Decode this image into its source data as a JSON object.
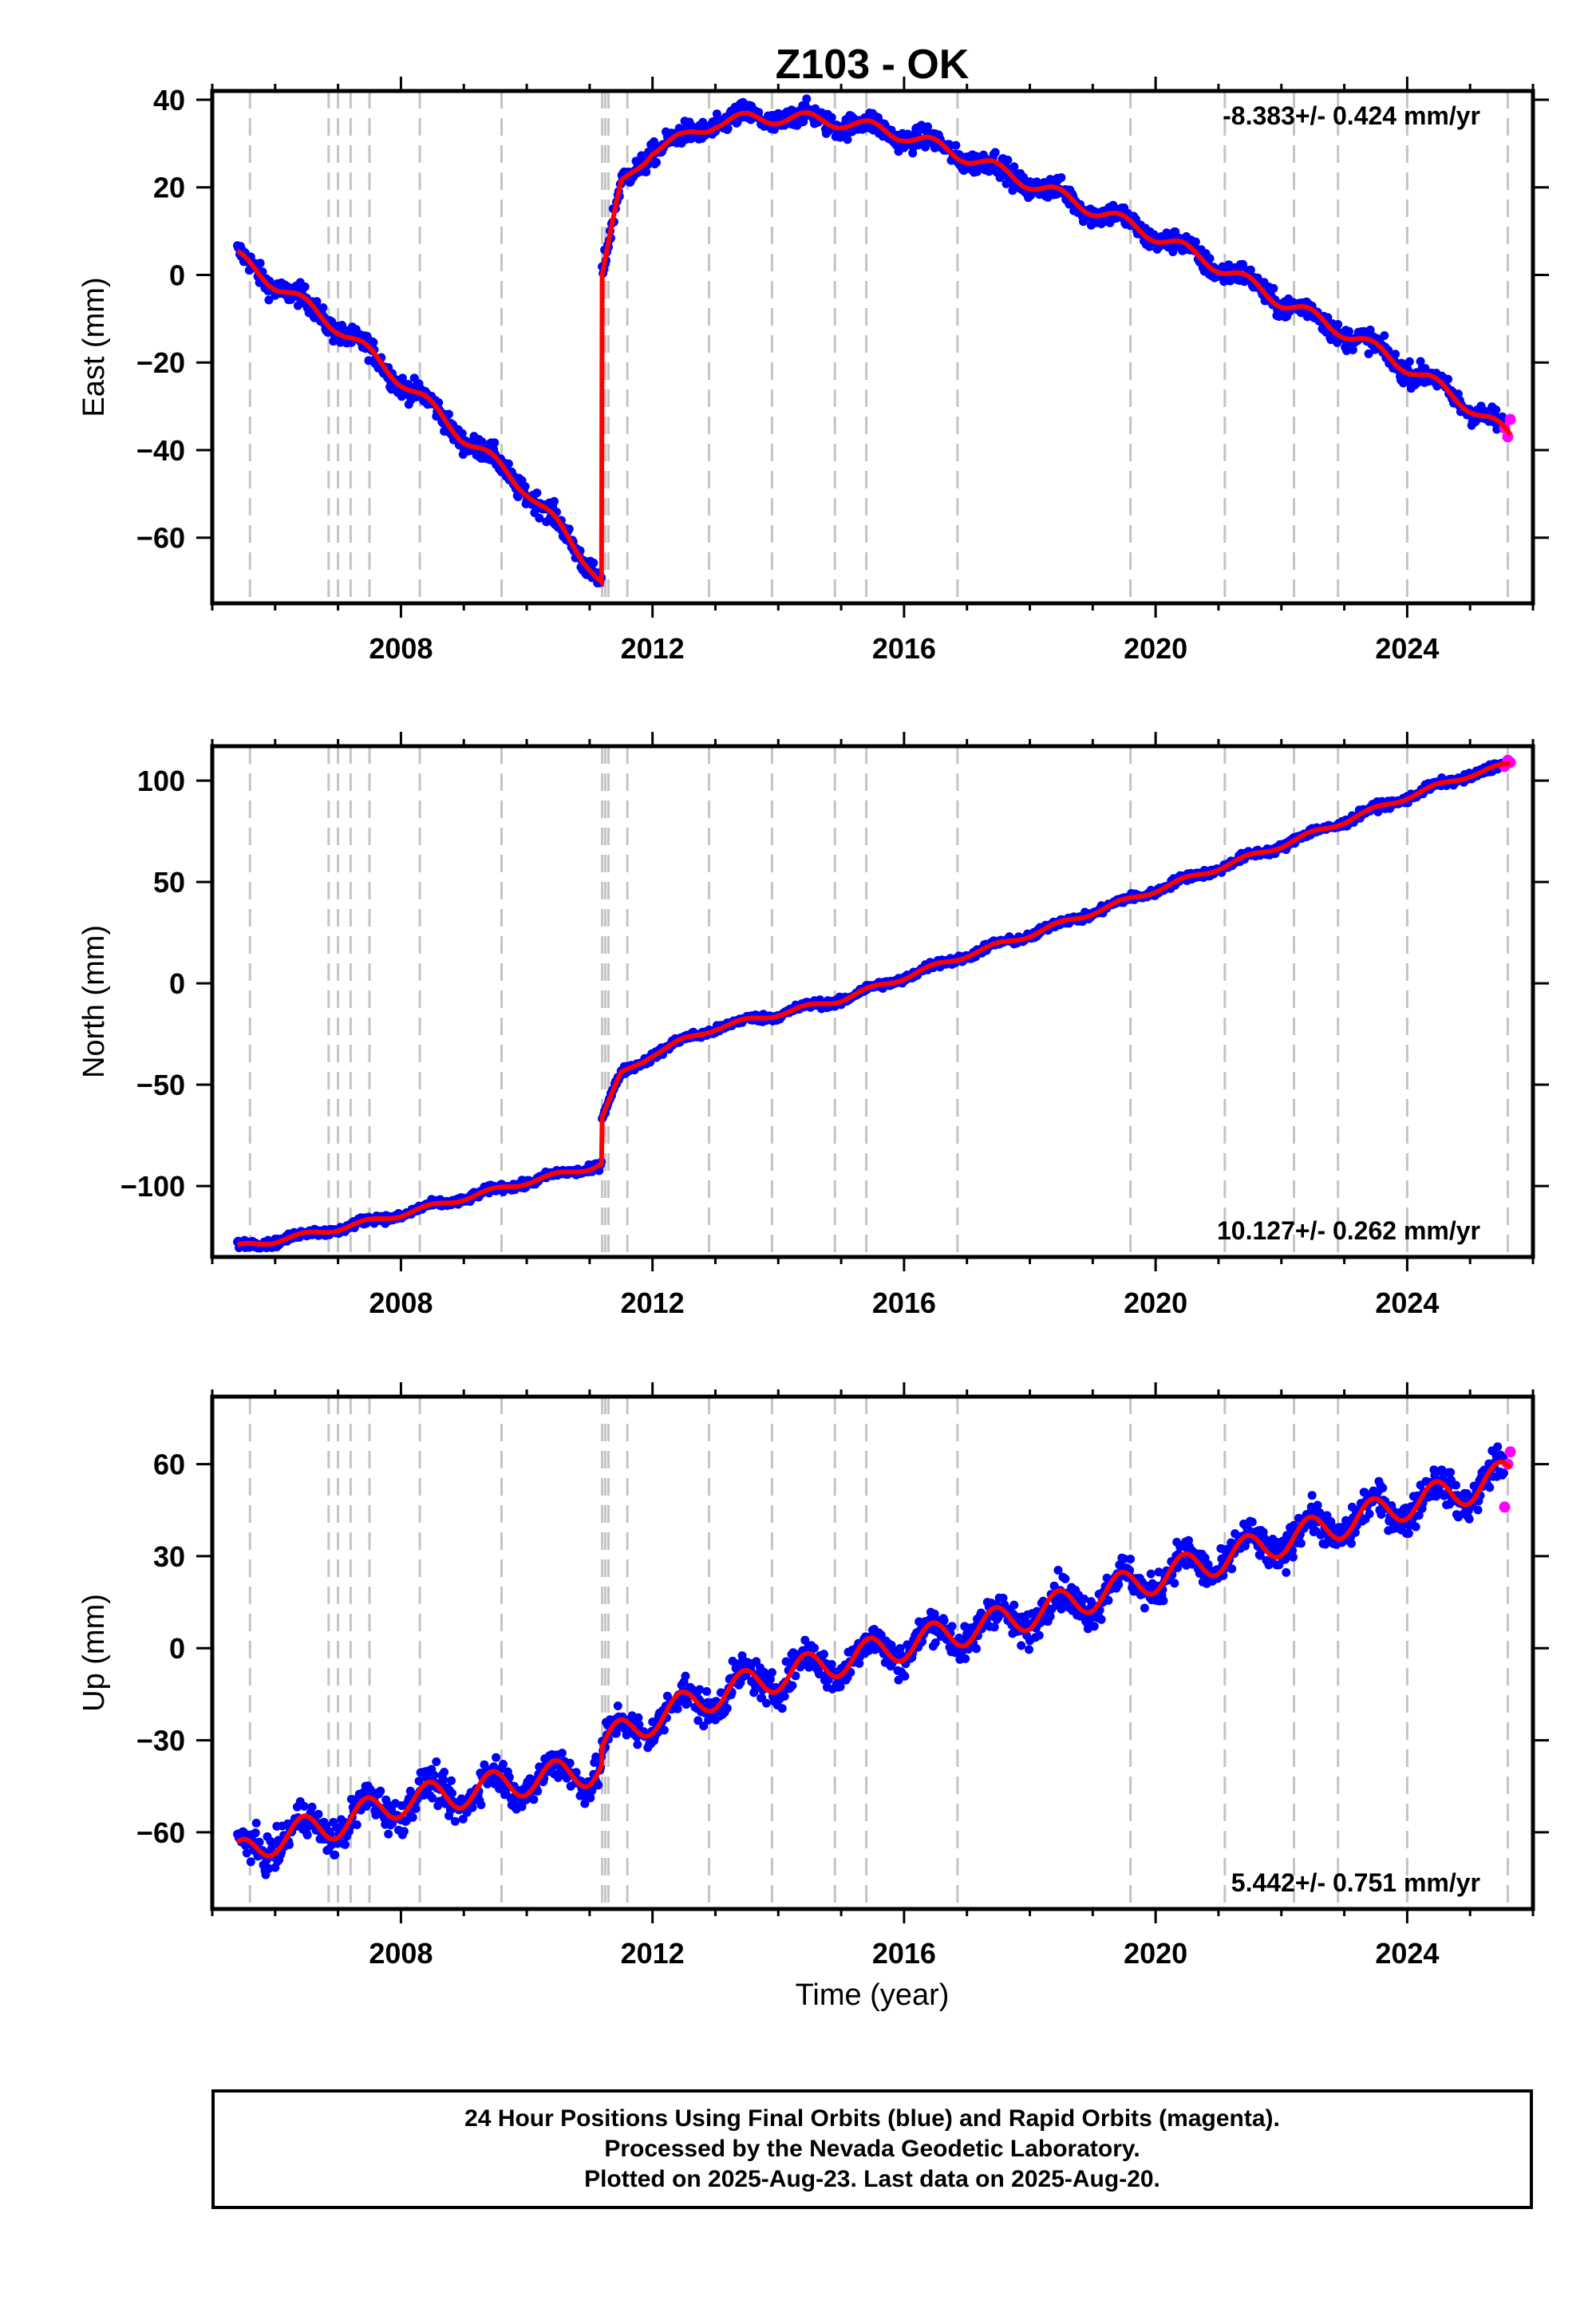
{
  "chart_data": {
    "type": "scatter",
    "title": "Z103 - OK",
    "xlabel": "Time (year)",
    "xlim": [
      2005.0,
      2026.0
    ],
    "x_ticks": [
      2008,
      2012,
      2016,
      2020,
      2024
    ],
    "x_tick_labels": [
      "2008",
      "2012",
      "2016",
      "2020",
      "2024"
    ],
    "grid": "vertical dashed lines at equipment/event dates",
    "event_lines": [
      2005.6,
      2006.85,
      2007.0,
      2007.2,
      2007.5,
      2008.3,
      2009.6,
      2011.2,
      2011.25,
      2011.3,
      2011.6,
      2012.9,
      2013.9,
      2014.9,
      2015.4,
      2016.85,
      2019.6,
      2021.1,
      2022.2,
      2022.9,
      2024.0,
      2025.6
    ],
    "series_colors": {
      "final": "#0000ff",
      "rapid": "#ff00ff",
      "model": "#ff0000"
    },
    "panels": [
      {
        "ylabel": "East (mm)",
        "ylim": [
          -75,
          42
        ],
        "y_ticks": [
          40,
          20,
          0,
          -20,
          -40,
          -60
        ],
        "y_tick_labels": [
          "40",
          "20",
          "0",
          "−20",
          "−40",
          "−60"
        ],
        "rate_label": "-8.383+/- 0.424 mm/yr",
        "rate_position": "top-right",
        "noise": 1.8,
        "seasonal_amp": 1.5,
        "model": {
          "x": [
            2005.4,
            2006.0,
            2007.0,
            2008.0,
            2009.0,
            2010.0,
            2011.0,
            2011.19,
            2011.2,
            2011.5,
            2012.0,
            2012.5,
            2013.0,
            2014.0,
            2015.0,
            2016.0,
            2017.0,
            2018.0,
            2019.0,
            2020.0,
            2021.0,
            2022.0,
            2023.0,
            2024.0,
            2025.0,
            2025.64
          ],
          "y": [
            4,
            -2,
            -12,
            -24,
            -37,
            -49,
            -66,
            -70,
            0,
            20,
            29,
            31,
            35,
            36,
            35,
            32,
            27,
            21,
            15,
            9,
            2,
            -6,
            -13,
            -21,
            -30,
            -37
          ]
        },
        "rapid": {
          "x": [
            2025.55,
            2025.6,
            2025.64
          ],
          "y": [
            -35,
            -37,
            -33
          ]
        }
      },
      {
        "ylabel": "North (mm)",
        "ylim": [
          -135,
          117
        ],
        "y_ticks": [
          100,
          50,
          0,
          -50,
          -100
        ],
        "y_tick_labels": [
          "100",
          "50",
          "0",
          "−50",
          "−100"
        ],
        "rate_label": "10.127+/- 0.262 mm/yr",
        "rate_position": "bottom-right",
        "noise": 1.4,
        "seasonal_amp": 1.2,
        "model": {
          "x": [
            2005.4,
            2006.0,
            2007.0,
            2008.0,
            2009.0,
            2010.0,
            2011.0,
            2011.19,
            2011.2,
            2011.5,
            2012.0,
            2012.5,
            2013.0,
            2014.0,
            2015.0,
            2016.0,
            2017.0,
            2018.0,
            2019.0,
            2020.0,
            2021.0,
            2022.0,
            2023.0,
            2024.0,
            2025.0,
            2025.64
          ],
          "y": [
            -130,
            -127,
            -121,
            -114,
            -106,
            -98,
            -91,
            -89,
            -66,
            -45,
            -35,
            -28,
            -22,
            -15,
            -8,
            3,
            14,
            24,
            35,
            46,
            57,
            68,
            80,
            92,
            103,
            108
          ]
        },
        "rapid": {
          "x": [
            2025.55,
            2025.6,
            2025.64
          ],
          "y": [
            107,
            110,
            109
          ]
        }
      },
      {
        "ylabel": "Up (mm)",
        "ylim": [
          -85,
          82
        ],
        "y_ticks": [
          60,
          30,
          0,
          -30,
          -60
        ],
        "y_tick_labels": [
          "60",
          "30",
          "0",
          "−30",
          "−60"
        ],
        "rate_label": "5.442+/- 0.751 mm/yr",
        "rate_position": "bottom-right",
        "noise": 4.0,
        "seasonal_amp": 5.0,
        "model": {
          "x": [
            2005.4,
            2006.0,
            2007.0,
            2008.0,
            2009.0,
            2010.0,
            2011.0,
            2011.19,
            2011.2,
            2011.5,
            2012.0,
            2013.0,
            2014.0,
            2015.0,
            2016.0,
            2017.0,
            2018.0,
            2019.0,
            2020.0,
            2021.0,
            2022.0,
            2023.0,
            2024.0,
            2025.0,
            2025.64
          ],
          "y": [
            -68,
            -62,
            -57,
            -50,
            -47,
            -43,
            -40,
            -38,
            -32,
            -28,
            -23,
            -15,
            -9,
            -4,
            1,
            6,
            11,
            17,
            23,
            29,
            35,
            41,
            47,
            52,
            57
          ]
        },
        "rapid": {
          "x": [
            2025.55,
            2025.6,
            2025.64
          ],
          "y": [
            46,
            60,
            64
          ]
        }
      }
    ]
  },
  "footer": {
    "line1": "24 Hour Positions Using Final Orbits (blue) and Rapid Orbits (magenta).",
    "line2": "Processed by the Nevada Geodetic Laboratory.",
    "line3": "Plotted on 2025-Aug-23. Last data on 2025-Aug-20."
  }
}
